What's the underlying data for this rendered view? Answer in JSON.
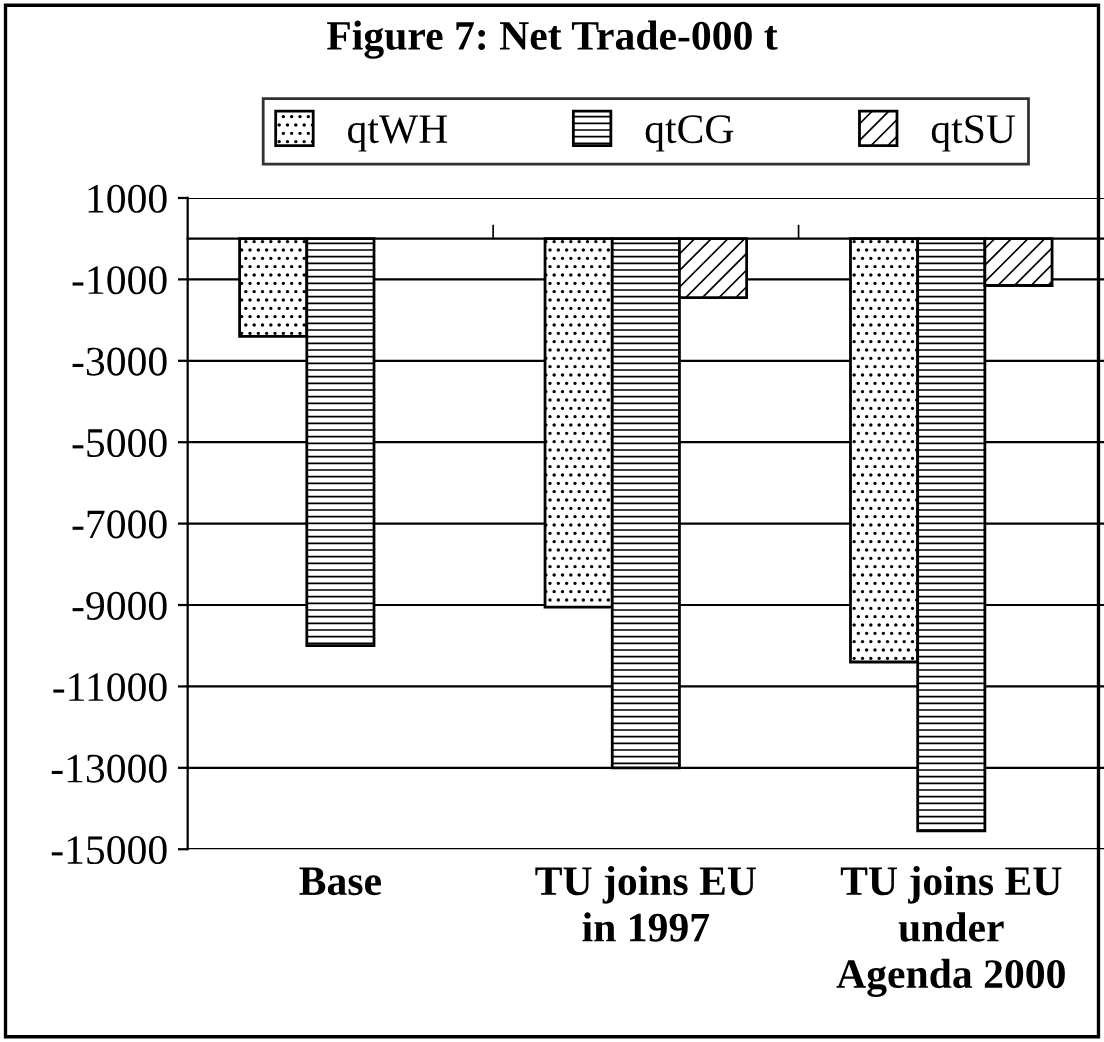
{
  "chart_data": {
    "type": "bar",
    "title": "Figure 7: Net Trade-000 t",
    "categories": [
      "Base",
      "TU joins EU\nin 1997",
      "TU joins EU\nunder\nAgenda 2000"
    ],
    "series": [
      {
        "name": "qtWH",
        "color": "#000000",
        "values": [
          -2400,
          -9050,
          -10400
        ]
      },
      {
        "name": "qtCG",
        "color": "#000000",
        "values": [
          -10000,
          -13000,
          -14550
        ]
      },
      {
        "name": "qtSU",
        "color": "#000000",
        "values": [
          null,
          -1450,
          -1150
        ]
      }
    ],
    "ylim": [
      -15000,
      1000
    ],
    "yticks": [
      1000,
      -1000,
      -3000,
      -5000,
      -7000,
      -9000,
      -11000,
      -13000,
      -15000
    ],
    "grid": "y",
    "legend": "top"
  }
}
